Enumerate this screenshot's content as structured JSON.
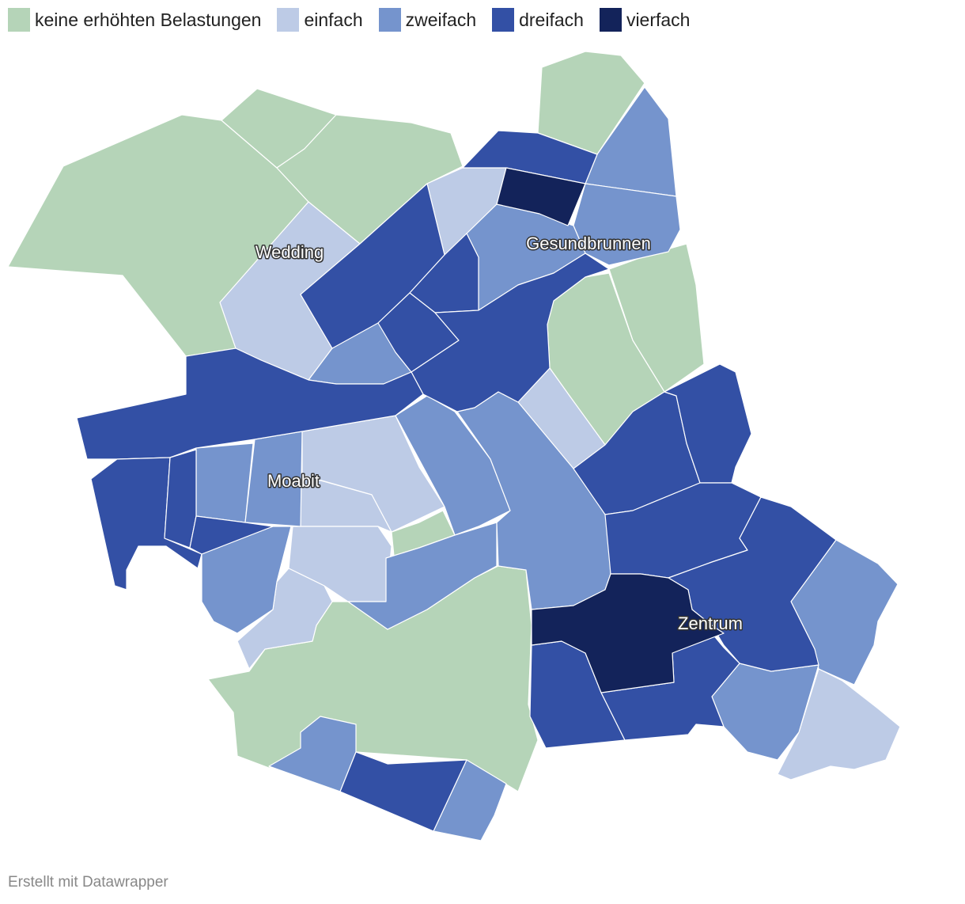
{
  "legend": {
    "items": [
      {
        "label": "keine erhöhten Belastungen",
        "color": "#b5d4b8"
      },
      {
        "label": "einfach",
        "color": "#bdcbe6"
      },
      {
        "label": "zweifach",
        "color": "#7594cd"
      },
      {
        "label": "dreifach",
        "color": "#3350a5"
      },
      {
        "label": "vierfach",
        "color": "#13235a"
      }
    ]
  },
  "map": {
    "labels": {
      "wedding": "Wedding",
      "gesundbrunnen": "Gesundbrunnen",
      "moabit": "Moabit",
      "zentrum": "Zentrum"
    }
  },
  "footer": {
    "credit": "Erstellt mit Datawrapper"
  }
}
